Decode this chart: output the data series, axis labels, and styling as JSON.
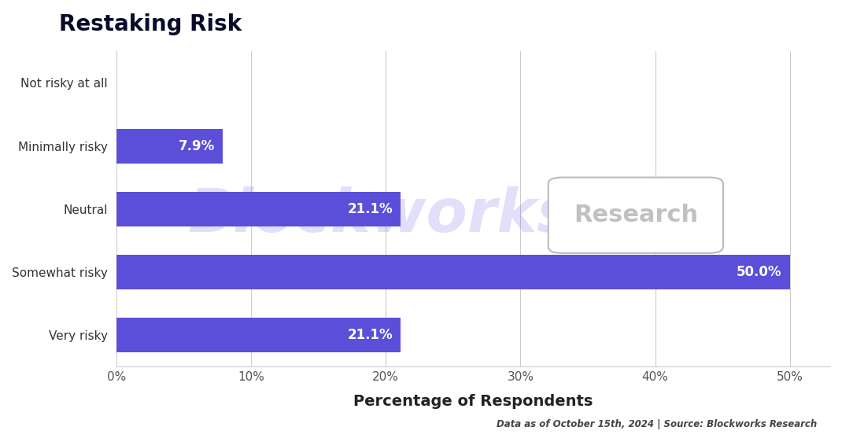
{
  "title": "Restaking Risk",
  "categories": [
    "Not risky at all",
    "Minimally risky",
    "Neutral",
    "Somewhat risky",
    "Very risky"
  ],
  "values": [
    0.0,
    7.9,
    21.1,
    50.0,
    21.1
  ],
  "labels": [
    "",
    "7.9%",
    "21.1%",
    "50.0%",
    "21.1%"
  ],
  "bar_color": "#5B4FD9",
  "background_color": "#FFFFFF",
  "xlabel": "Percentage of Respondents",
  "title_fontsize": 20,
  "label_fontsize": 12,
  "tick_fontsize": 11,
  "xlabel_fontsize": 14,
  "xlim": [
    0,
    53
  ],
  "xticks": [
    0,
    10,
    20,
    30,
    40,
    50
  ],
  "xtick_labels": [
    "0%",
    "10%",
    "20%",
    "30%",
    "40%",
    "50%"
  ],
  "footer": "Data as of October 15th, 2024 | Source: Blockworks Research",
  "watermark_text": "Blockworks",
  "watermark_text2": "Research",
  "grid_color": "#CCCCCC",
  "title_color": "#0A0A2A"
}
